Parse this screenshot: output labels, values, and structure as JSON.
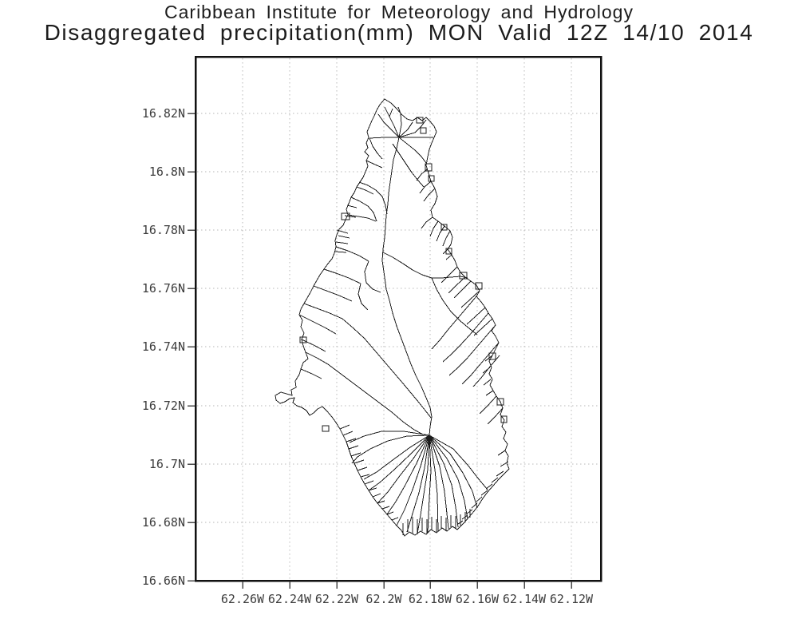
{
  "title": {
    "line1": "Caribbean Institute for Meteorology and Hydrology",
    "line2": "Disaggregated precipitation(mm) MON Valid 12Z 14/10 2014"
  },
  "map": {
    "x_axis_labels": [
      "62.26W",
      "62.24W",
      "62.22W",
      "62.2W",
      "62.18W",
      "62.16W",
      "62.14W",
      "62.12W"
    ],
    "y_axis_labels": [
      "16.82N",
      "16.8N",
      "16.78N",
      "16.76N",
      "16.74N",
      "16.72N",
      "16.7N",
      "16.68N",
      "16.66N"
    ]
  },
  "chart_data": {
    "type": "map",
    "title": "Disaggregated precipitation(mm) MON Valid 12Z 14/10 2014",
    "subtitle": "Caribbean Institute for Meteorology and Hydrology",
    "x_ticks": [
      "62.26W",
      "62.24W",
      "62.22W",
      "62.2W",
      "62.18W",
      "62.16W",
      "62.14W",
      "62.12W"
    ],
    "y_ticks": [
      "16.82N",
      "16.8N",
      "16.78N",
      "16.76N",
      "16.74N",
      "16.72N",
      "16.7N",
      "16.68N",
      "16.66N"
    ],
    "grid": "dotted",
    "legend": "none",
    "content": "island coastline with interior watershed boundary polygons, no shaded precipitation values"
  },
  "colors": {
    "background": "#ffffff",
    "title_text": "#1c1c1c",
    "axis_label_text": "#3c3c3c",
    "plot_border": "#111111",
    "gridline": "#b8b8b8",
    "tick": "#4a4a4a",
    "map_line": "#1c1c1c"
  }
}
